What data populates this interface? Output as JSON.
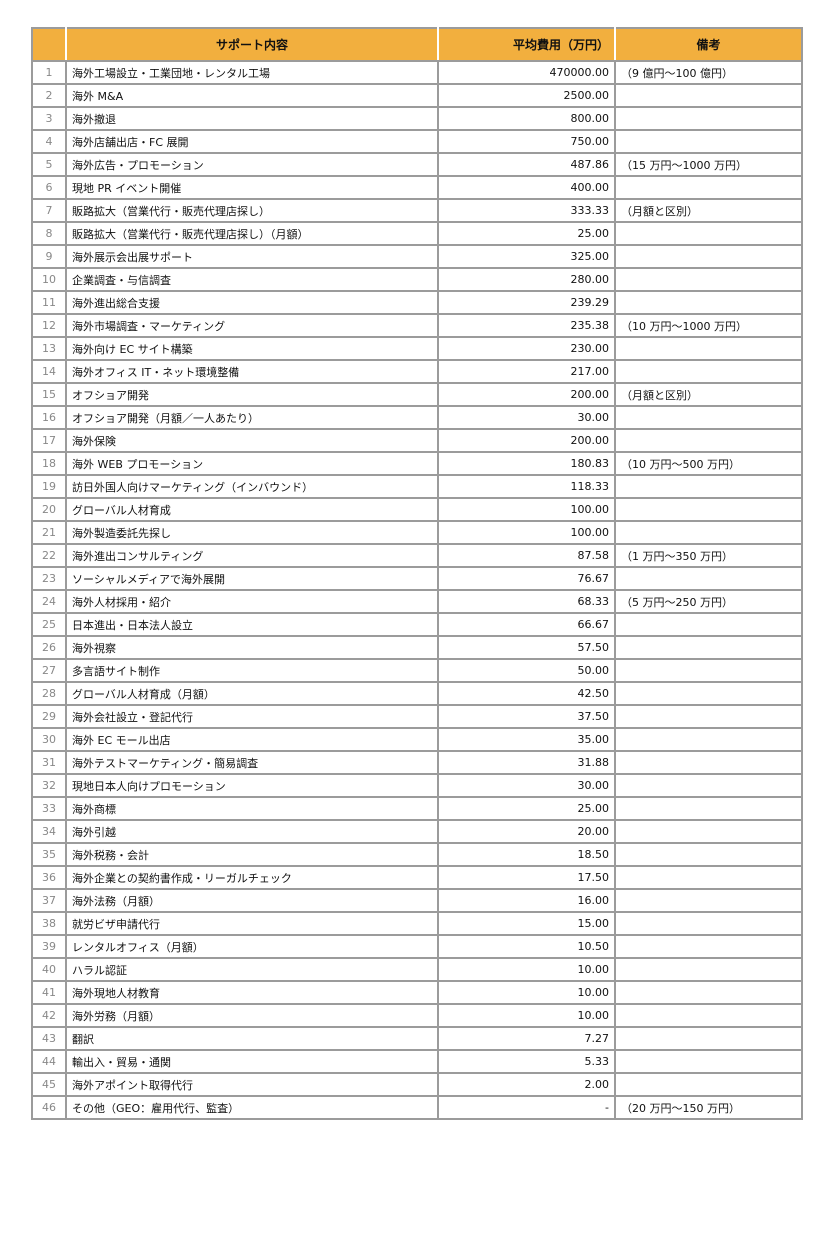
{
  "header": {
    "num": "",
    "content": "サポート内容",
    "fee": "平均費用（万円）",
    "note": "備考"
  },
  "colors": {
    "header_bg": "#f2af3e",
    "border": "#9b9b9b"
  },
  "rows": [
    {
      "num": "1",
      "content": "海外工場設立・工業団地・レンタル工場",
      "fee": "470000.00",
      "note": "（9 億円～100 億円）"
    },
    {
      "num": "2",
      "content": "海外 M&A",
      "fee": "2500.00",
      "note": ""
    },
    {
      "num": "3",
      "content": "海外撤退",
      "fee": "800.00",
      "note": ""
    },
    {
      "num": "4",
      "content": "海外店舗出店・FC 展開",
      "fee": "750.00",
      "note": ""
    },
    {
      "num": "5",
      "content": "海外広告・プロモーション",
      "fee": "487.86",
      "note": "（15 万円～1000 万円）"
    },
    {
      "num": "6",
      "content": "現地 PR イベント開催",
      "fee": "400.00",
      "note": ""
    },
    {
      "num": "7",
      "content": "販路拡大（営業代行・販売代理店探し）",
      "fee": "333.33",
      "note": "（月額と区別）"
    },
    {
      "num": "8",
      "content": "販路拡大（営業代行・販売代理店探し）（月額）",
      "fee": "25.00",
      "note": ""
    },
    {
      "num": "9",
      "content": "海外展示会出展サポート",
      "fee": "325.00",
      "note": ""
    },
    {
      "num": "10",
      "content": "企業調査・与信調査",
      "fee": "280.00",
      "note": ""
    },
    {
      "num": "11",
      "content": "海外進出総合支援",
      "fee": "239.29",
      "note": ""
    },
    {
      "num": "12",
      "content": "海外市場調査・マーケティング",
      "fee": "235.38",
      "note": "（10 万円～1000 万円）"
    },
    {
      "num": "13",
      "content": "海外向け EC サイト構築",
      "fee": "230.00",
      "note": ""
    },
    {
      "num": "14",
      "content": "海外オフィス IT・ネット環境整備",
      "fee": "217.00",
      "note": ""
    },
    {
      "num": "15",
      "content": "オフショア開発",
      "fee": "200.00",
      "note": "（月額と区別）"
    },
    {
      "num": "16",
      "content": "オフショア開発（月額／一人あたり）",
      "fee": "30.00",
      "note": ""
    },
    {
      "num": "17",
      "content": "海外保険",
      "fee": "200.00",
      "note": ""
    },
    {
      "num": "18",
      "content": "海外 WEB プロモーション",
      "fee": "180.83",
      "note": "（10 万円～500 万円）"
    },
    {
      "num": "19",
      "content": "訪日外国人向けマーケティング（インバウンド）",
      "fee": "118.33",
      "note": ""
    },
    {
      "num": "20",
      "content": "グローバル人材育成",
      "fee": "100.00",
      "note": ""
    },
    {
      "num": "21",
      "content": "海外製造委託先探し",
      "fee": "100.00",
      "note": ""
    },
    {
      "num": "22",
      "content": "海外進出コンサルティング",
      "fee": "87.58",
      "note": "（1 万円～350 万円）"
    },
    {
      "num": "23",
      "content": "ソーシャルメディアで海外展開",
      "fee": "76.67",
      "note": ""
    },
    {
      "num": "24",
      "content": "海外人材採用・紹介",
      "fee": "68.33",
      "note": "（5 万円～250 万円）"
    },
    {
      "num": "25",
      "content": "日本進出・日本法人設立",
      "fee": "66.67",
      "note": ""
    },
    {
      "num": "26",
      "content": "海外視察",
      "fee": "57.50",
      "note": ""
    },
    {
      "num": "27",
      "content": "多言語サイト制作",
      "fee": "50.00",
      "note": ""
    },
    {
      "num": "28",
      "content": "グローバル人材育成（月額）",
      "fee": "42.50",
      "note": ""
    },
    {
      "num": "29",
      "content": "海外会社設立・登記代行",
      "fee": "37.50",
      "note": ""
    },
    {
      "num": "30",
      "content": "海外 EC モール出店",
      "fee": "35.00",
      "note": ""
    },
    {
      "num": "31",
      "content": "海外テストマーケティング・簡易調査",
      "fee": "31.88",
      "note": ""
    },
    {
      "num": "32",
      "content": "現地日本人向けプロモーション",
      "fee": "30.00",
      "note": ""
    },
    {
      "num": "33",
      "content": "海外商標",
      "fee": "25.00",
      "note": ""
    },
    {
      "num": "34",
      "content": "海外引越",
      "fee": "20.00",
      "note": ""
    },
    {
      "num": "35",
      "content": "海外税務・会計",
      "fee": "18.50",
      "note": ""
    },
    {
      "num": "36",
      "content": "海外企業との契約書作成・リーガルチェック",
      "fee": "17.50",
      "note": ""
    },
    {
      "num": "37",
      "content": "海外法務（月額）",
      "fee": "16.00",
      "note": ""
    },
    {
      "num": "38",
      "content": "就労ビザ申請代行",
      "fee": "15.00",
      "note": ""
    },
    {
      "num": "39",
      "content": "レンタルオフィス（月額）",
      "fee": "10.50",
      "note": ""
    },
    {
      "num": "40",
      "content": "ハラル認証",
      "fee": "10.00",
      "note": ""
    },
    {
      "num": "41",
      "content": "海外現地人材教育",
      "fee": "10.00",
      "note": ""
    },
    {
      "num": "42",
      "content": "海外労務（月額）",
      "fee": "10.00",
      "note": ""
    },
    {
      "num": "43",
      "content": "翻訳",
      "fee": "7.27",
      "note": ""
    },
    {
      "num": "44",
      "content": "輸出入・貿易・通関",
      "fee": "5.33",
      "note": ""
    },
    {
      "num": "45",
      "content": "海外アポイント取得代行",
      "fee": "2.00",
      "note": ""
    },
    {
      "num": "46",
      "content": "その他（GEO：雇用代行、監査）",
      "fee": "-",
      "note": "（20 万円～150 万円）"
    }
  ]
}
